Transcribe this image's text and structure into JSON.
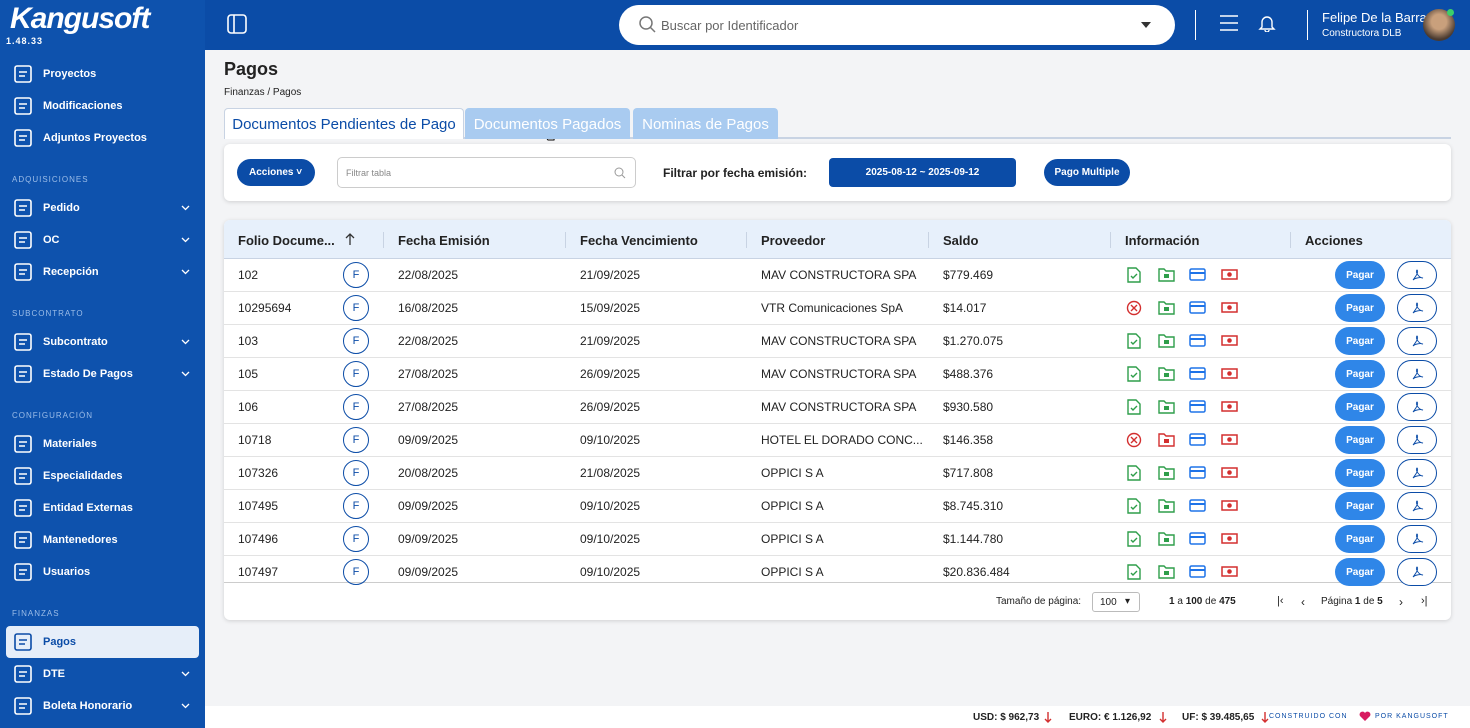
{
  "brand": {
    "name": "Kangusoft",
    "version": "1.48.33"
  },
  "sidebar": {
    "sections": [
      {
        "items": [
          {
            "label": "Proyectos"
          },
          {
            "label": "Modificaciones"
          },
          {
            "label": "Adjuntos Proyectos"
          }
        ]
      },
      {
        "title": "ADQUISICIONES",
        "items": [
          {
            "label": "Pedido",
            "expandable": true
          },
          {
            "label": "OC",
            "expandable": true
          },
          {
            "label": "Recepción",
            "expandable": true
          }
        ]
      },
      {
        "title": "SUBCONTRATO",
        "items": [
          {
            "label": "Subcontrato",
            "expandable": true
          },
          {
            "label": "Estado De Pagos",
            "expandable": true
          }
        ]
      },
      {
        "title": "CONFIGURACIÓN",
        "items": [
          {
            "label": "Materiales"
          },
          {
            "label": "Especialidades"
          },
          {
            "label": "Entidad Externas"
          },
          {
            "label": "Mantenedores"
          },
          {
            "label": "Usuarios"
          }
        ]
      },
      {
        "title": "FINANZAS",
        "items": [
          {
            "label": "Pagos",
            "active": true
          },
          {
            "label": "DTE",
            "expandable": true
          },
          {
            "label": "Boleta Honorario",
            "expandable": true
          }
        ]
      }
    ]
  },
  "topbar": {
    "search_placeholder": "Buscar por Identificador",
    "user_name": "Felipe De la Barra",
    "company": "Constructora DLB"
  },
  "page": {
    "title": "Pagos",
    "breadcrumb": "Finanzas / Pagos"
  },
  "tabs": [
    {
      "label": "Documentos Pendientes de Pago",
      "active": true
    },
    {
      "label": "Documentos Pagados"
    },
    {
      "label": "Nominas de Pagos"
    }
  ],
  "toolbar": {
    "actions": "Acciones",
    "filter_placeholder": "Filtrar tabla",
    "date_filter_label": "Filtrar por fecha emisión:",
    "date_range": "2025-08-12 ~ 2025-09-12",
    "multi_pay": "Pago Multiple"
  },
  "table": {
    "columns": [
      "Folio Docume...",
      "Fecha Emisión",
      "Fecha Vencimiento",
      "Proveedor",
      "Saldo",
      "Información",
      "Acciones"
    ],
    "pay_label": "Pagar",
    "rows": [
      {
        "folio": "102",
        "type": "F",
        "issued": "22/08/2025",
        "due": "21/09/2025",
        "supplier": "MAV CONSTRUCTORA SPA",
        "balance": "$779.469",
        "doc_ok": true,
        "folder_ok": true
      },
      {
        "folio": "10295694",
        "type": "F",
        "issued": "16/08/2025",
        "due": "15/09/2025",
        "supplier": "VTR Comunicaciones SpA",
        "balance": "$14.017",
        "doc_ok": false,
        "folder_ok": true
      },
      {
        "folio": "103",
        "type": "F",
        "issued": "22/08/2025",
        "due": "21/09/2025",
        "supplier": "MAV CONSTRUCTORA SPA",
        "balance": "$1.270.075",
        "doc_ok": true,
        "folder_ok": true
      },
      {
        "folio": "105",
        "type": "F",
        "issued": "27/08/2025",
        "due": "26/09/2025",
        "supplier": "MAV CONSTRUCTORA SPA",
        "balance": "$488.376",
        "doc_ok": true,
        "folder_ok": true
      },
      {
        "folio": "106",
        "type": "F",
        "issued": "27/08/2025",
        "due": "26/09/2025",
        "supplier": "MAV CONSTRUCTORA SPA",
        "balance": "$930.580",
        "doc_ok": true,
        "folder_ok": true
      },
      {
        "folio": "10718",
        "type": "F",
        "issued": "09/09/2025",
        "due": "09/10/2025",
        "supplier": "HOTEL EL DORADO CONC...",
        "balance": "$146.358",
        "doc_ok": false,
        "folder_ok": false
      },
      {
        "folio": "107326",
        "type": "F",
        "issued": "20/08/2025",
        "due": "21/08/2025",
        "supplier": "OPPICI S A",
        "balance": "$717.808",
        "doc_ok": true,
        "folder_ok": true
      },
      {
        "folio": "107495",
        "type": "F",
        "issued": "09/09/2025",
        "due": "09/10/2025",
        "supplier": "OPPICI S A",
        "balance": "$8.745.310",
        "doc_ok": true,
        "folder_ok": true
      },
      {
        "folio": "107496",
        "type": "F",
        "issued": "09/09/2025",
        "due": "09/10/2025",
        "supplier": "OPPICI S A",
        "balance": "$1.144.780",
        "doc_ok": true,
        "folder_ok": true
      },
      {
        "folio": "107497",
        "type": "F",
        "issued": "09/09/2025",
        "due": "09/10/2025",
        "supplier": "OPPICI S A",
        "balance": "$20.836.484",
        "doc_ok": true,
        "folder_ok": true
      }
    ]
  },
  "pagination": {
    "page_size_label": "Tamaño de página:",
    "page_size": "100",
    "range": [
      "1",
      "a",
      "100",
      "de",
      "475"
    ],
    "page": [
      "Página",
      "1",
      "de",
      "5"
    ]
  },
  "footer": {
    "rates": [
      "USD: $ 962,73",
      "EURO: € 1.126,92",
      "UF: $ 39.485,65"
    ],
    "built_with": "CONSTRUIDO CON",
    "built_by": "POR KANGUSOFT"
  }
}
